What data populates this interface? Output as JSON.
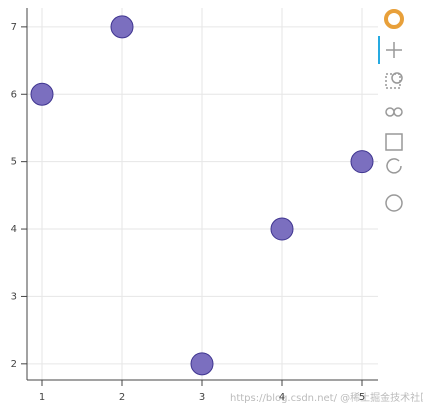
{
  "chart_data": {
    "type": "scatter",
    "x": [
      1,
      2,
      3,
      4,
      5
    ],
    "series": [
      {
        "color": "#7b6fbf",
        "values": [
          6,
          7,
          2,
          4,
          5
        ]
      }
    ],
    "xlim": [
      0.8125,
      5.2
    ],
    "ylim": [
      1.76,
      7.28
    ],
    "xticks": [
      1,
      2,
      3,
      4,
      5
    ],
    "yticks": [
      2,
      3,
      4,
      5,
      6,
      7
    ],
    "grid": true,
    "watermark": "https://blog.csdn.net/  @稀土掘金技术社区"
  }
}
